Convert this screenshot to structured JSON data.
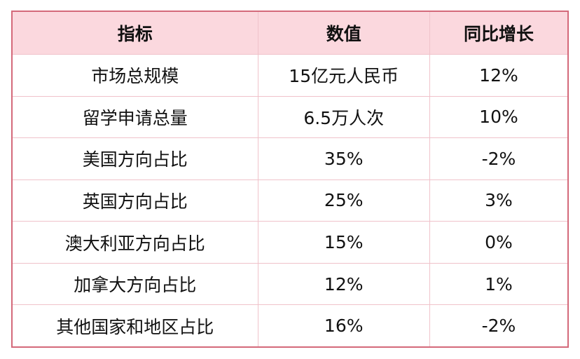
{
  "chart_data": {
    "type": "table",
    "columns": [
      "指标",
      "数值",
      "同比增长"
    ],
    "rows": [
      [
        "市场总规模",
        "15亿元人民币",
        "12%"
      ],
      [
        "留学申请总量",
        "6.5万人次",
        "10%"
      ],
      [
        "美国方向占比",
        "35%",
        "-2%"
      ],
      [
        "英国方向占比",
        "25%",
        "3%"
      ],
      [
        "澳大利亚方向占比",
        "15%",
        "0%"
      ],
      [
        "加拿大方向占比",
        "12%",
        "1%"
      ],
      [
        "其他国家和地区占比",
        "16%",
        "-2%"
      ]
    ],
    "colors": {
      "header_bg": "#fbd8de",
      "outer_border": "#d4697a",
      "inner_border": "#f0c2ca"
    }
  }
}
